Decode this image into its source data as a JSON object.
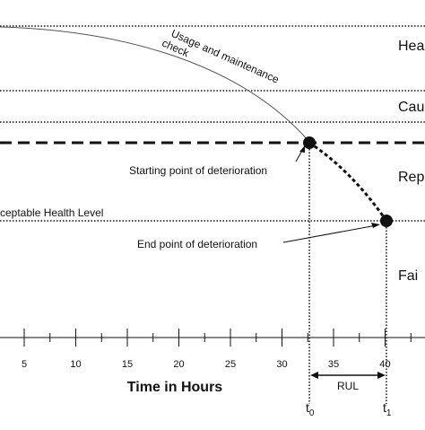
{
  "zones": {
    "healthy": "Hea",
    "caution": "Cau",
    "repair": "Rep",
    "failure": "Fai"
  },
  "annotations": {
    "usage_line1": "Usage and maintenance",
    "usage_line2": "check",
    "start_point": "Starting point of deterioration",
    "end_point": "End point of deterioration",
    "acceptable_level": "ceptable Health Level"
  },
  "axis": {
    "title": "Time in Hours",
    "ticks": [
      "5",
      "10",
      "15",
      "20",
      "25",
      "30",
      "35",
      "40"
    ],
    "rul": "RUL",
    "t0": "t",
    "t0_sub": "0",
    "t1": "t",
    "t1_sub": "1"
  },
  "chart_data": {
    "type": "line",
    "xlabel": "Time in Hours",
    "x_ticks": [
      5,
      10,
      15,
      20,
      25,
      30,
      35,
      40
    ],
    "deterioration_start_x": 33,
    "deterioration_end_x": 40
  }
}
